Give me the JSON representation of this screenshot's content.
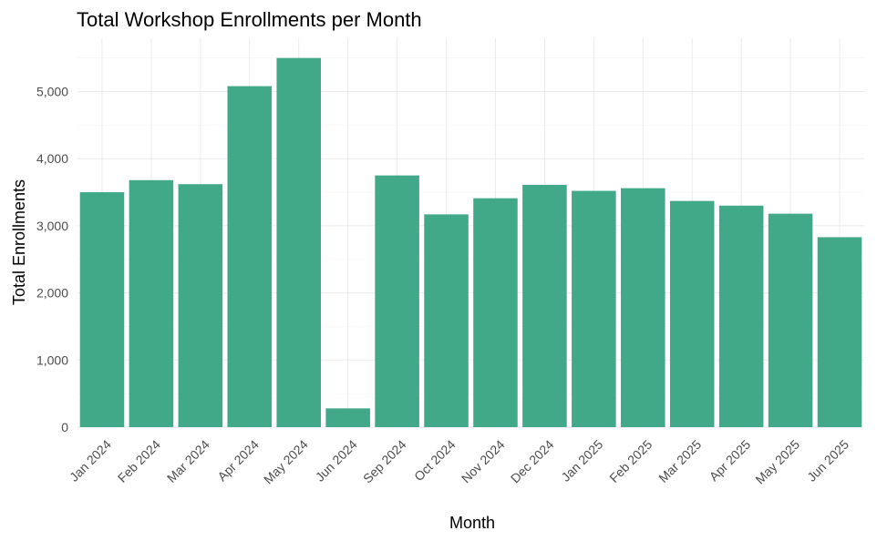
{
  "chart_data": {
    "type": "bar",
    "title": "Total Workshop Enrollments per Month",
    "xlabel": "Month",
    "ylabel": "Total Enrollments",
    "categories": [
      "Jan 2024",
      "Feb 2024",
      "Mar 2024",
      "Apr 2024",
      "May 2024",
      "Jun 2024",
      "Sep 2024",
      "Oct 2024",
      "Nov 2024",
      "Dec 2024",
      "Jan 2025",
      "Feb 2025",
      "Mar 2025",
      "Apr 2025",
      "May 2025",
      "Jun 2025"
    ],
    "values": [
      3500,
      3680,
      3620,
      5080,
      5500,
      280,
      3750,
      3170,
      3410,
      3610,
      3520,
      3560,
      3370,
      3300,
      3180,
      2830
    ],
    "ylim": [
      0,
      5500
    ],
    "yticks": [
      0,
      1000,
      2000,
      3000,
      4000,
      5000
    ],
    "ytick_labels": [
      "0",
      "1,000",
      "2,000",
      "3,000",
      "4,000",
      "5,000"
    ],
    "grid": true,
    "bar_color": "#41a987"
  }
}
